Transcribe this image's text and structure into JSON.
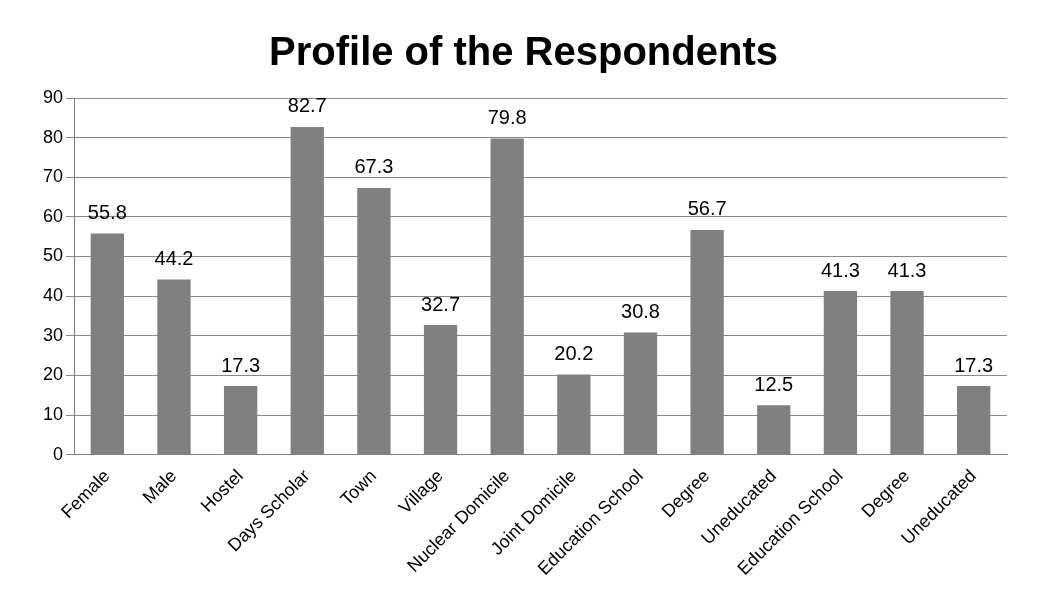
{
  "chart_data": {
    "type": "bar",
    "title": "Profile of the Respondents",
    "categories": [
      "Female",
      "Male",
      "Hostel",
      "Days Scholar",
      "Town",
      "Village",
      "Nuclear Domicile",
      "Joint Domicile",
      "Education School",
      "Degree",
      "Uneducated",
      "Education School",
      "Degree",
      "Uneducated"
    ],
    "values": [
      55.8,
      44.2,
      17.3,
      82.7,
      67.3,
      32.7,
      79.8,
      20.2,
      30.8,
      56.7,
      12.5,
      41.3,
      41.3,
      17.3
    ],
    "color": "#808080",
    "ylim": [
      0,
      90
    ],
    "yticks": [
      0,
      10,
      20,
      30,
      40,
      50,
      60,
      70,
      80,
      90
    ],
    "grid": "y",
    "data_labels": true,
    "legend": false
  }
}
